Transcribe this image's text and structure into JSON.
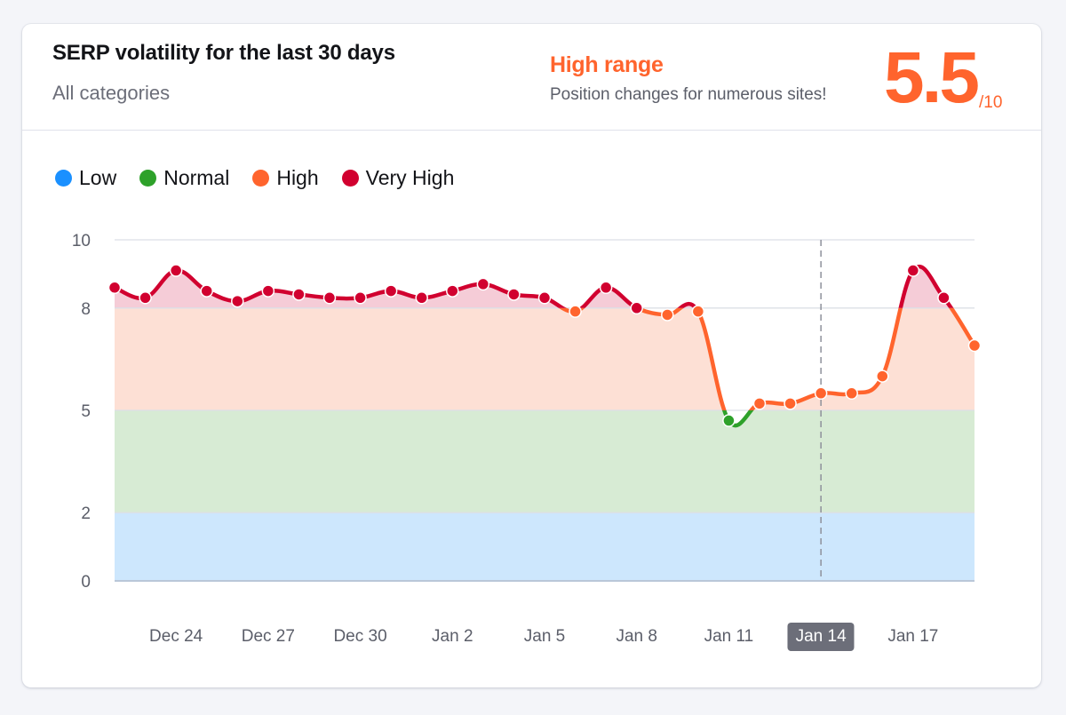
{
  "header": {
    "title": "SERP volatility for the last 30 days",
    "subtitle": "All categories",
    "range_label": "High range",
    "range_description": "Position changes for numerous sites!",
    "score": "5.5",
    "score_max": "/10"
  },
  "colors": {
    "low": "#1a90ff",
    "normal": "#2ea12a",
    "high": "#ff642d",
    "very_high": "#d1002f",
    "low_band": "#cde7fd",
    "normal_band": "#d7ebd4",
    "high_band": "#fde0d5",
    "very_high_band": "#f5ccd7"
  },
  "legend": [
    {
      "key": "low",
      "label": "Low",
      "color": "#1a90ff"
    },
    {
      "key": "normal",
      "label": "Normal",
      "color": "#2ea12a"
    },
    {
      "key": "high",
      "label": "High",
      "color": "#ff642d"
    },
    {
      "key": "very_high",
      "label": "Very High",
      "color": "#d1002f"
    }
  ],
  "chart_data": {
    "type": "line",
    "title": "SERP volatility for the last 30 days",
    "xlabel": "",
    "ylabel": "",
    "ylim": [
      0,
      10
    ],
    "y_ticks": [
      0,
      2,
      5,
      8,
      10
    ],
    "bands": [
      {
        "name": "Low",
        "from": 0,
        "to": 2
      },
      {
        "name": "Normal",
        "from": 2,
        "to": 5
      },
      {
        "name": "High",
        "from": 5,
        "to": 8
      },
      {
        "name": "Very High",
        "from": 8,
        "to": 10
      }
    ],
    "x": [
      "Dec 22",
      "Dec 23",
      "Dec 24",
      "Dec 25",
      "Dec 26",
      "Dec 27",
      "Dec 28",
      "Dec 29",
      "Dec 30",
      "Dec 31",
      "Jan 1",
      "Jan 2",
      "Jan 3",
      "Jan 4",
      "Jan 5",
      "Jan 6",
      "Jan 7",
      "Jan 8",
      "Jan 9",
      "Jan 10",
      "Jan 11",
      "Jan 12",
      "Jan 13",
      "Jan 14",
      "Jan 15",
      "Jan 16",
      "Jan 17",
      "Jan 18",
      "Jan 19"
    ],
    "x_tick_labels": [
      "Dec 24",
      "Dec 27",
      "Dec 30",
      "Jan 2",
      "Jan 5",
      "Jan 8",
      "Jan 11",
      "Jan 14",
      "Jan 17"
    ],
    "highlighted_x": "Jan 14",
    "series": [
      {
        "name": "Volatility",
        "values": [
          8.6,
          8.3,
          9.1,
          8.5,
          8.2,
          8.5,
          8.4,
          8.3,
          8.3,
          8.5,
          8.3,
          8.5,
          8.7,
          8.4,
          8.3,
          7.9,
          8.6,
          8.0,
          7.8,
          7.9,
          4.7,
          5.2,
          5.2,
          5.5,
          5.5,
          6.0,
          9.1,
          8.3,
          6.9
        ]
      }
    ],
    "grid": true,
    "legend_position": "top-left"
  }
}
